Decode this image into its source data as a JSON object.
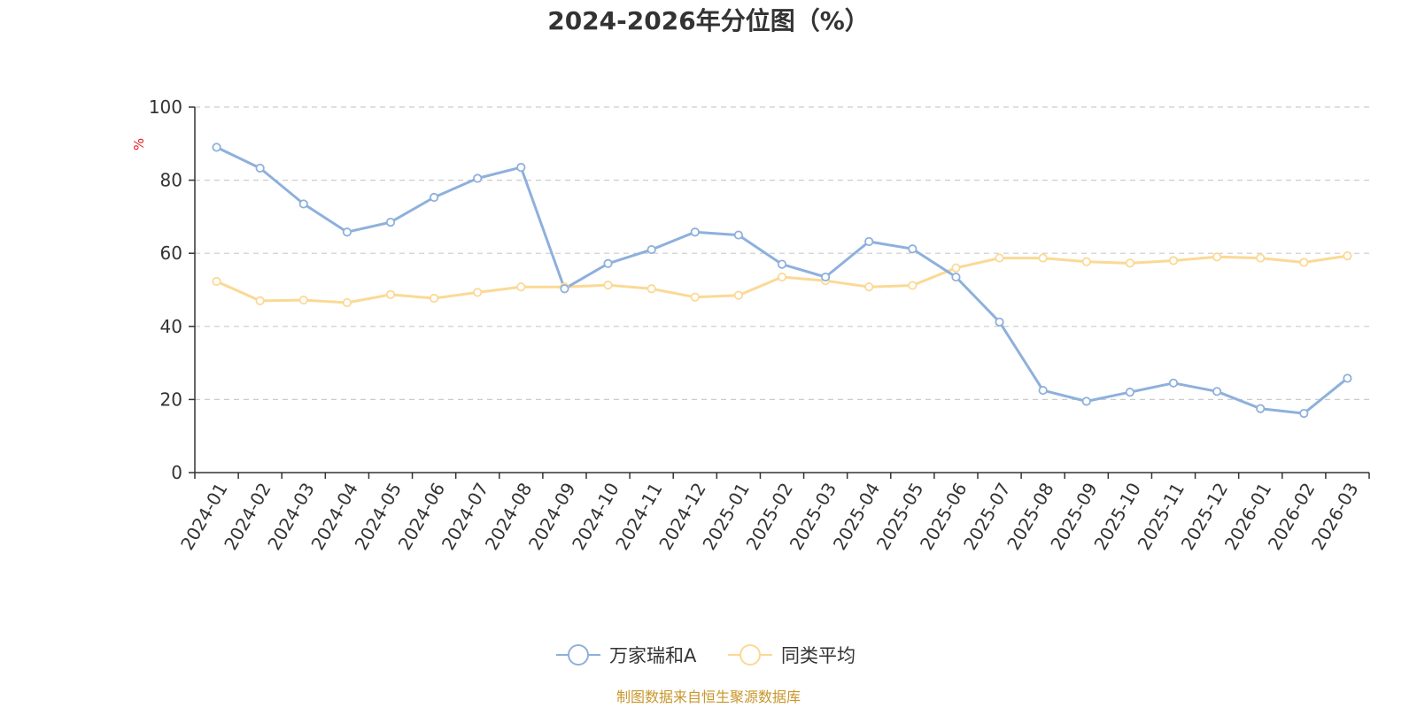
{
  "chart_data": {
    "type": "line",
    "title": "2024-2026年分位图（%）",
    "y_unit": "%",
    "ylim": [
      0,
      100
    ],
    "y_ticks": [
      "0",
      "20",
      "40",
      "60",
      "80",
      "100"
    ],
    "grid": "horizontal dashed",
    "legend_position": "bottom-center",
    "categories": [
      "2024-01",
      "2024-02",
      "2024-03",
      "2024-04",
      "2024-05",
      "2024-06",
      "2024-07",
      "2024-08",
      "2024-09",
      "2024-10",
      "2024-11",
      "2024-12",
      "2025-01",
      "2025-02",
      "2025-03",
      "2025-04",
      "2025-05",
      "2025-06",
      "2025-07",
      "2025-08",
      "2025-09",
      "2025-10",
      "2025-11",
      "2025-12",
      "2026-01",
      "2026-02",
      "2026-03"
    ],
    "series": [
      {
        "name": "万家瑞和A",
        "color": "#8eb0dc",
        "values": [
          89.0,
          83.3,
          73.5,
          65.8,
          68.5,
          75.3,
          80.5,
          83.5,
          50.3,
          57.2,
          61.0,
          65.8,
          65.0,
          57.0,
          53.5,
          63.2,
          61.2,
          53.5,
          41.2,
          22.5,
          19.5,
          22.0,
          24.5,
          22.2,
          17.5,
          16.2,
          25.8
        ]
      },
      {
        "name": "同类平均",
        "color": "#fbd995",
        "values": [
          52.3,
          47.0,
          47.2,
          46.5,
          48.7,
          47.7,
          49.3,
          50.8,
          50.8,
          51.3,
          50.3,
          48.0,
          48.5,
          53.5,
          52.5,
          50.8,
          51.2,
          56.0,
          58.7,
          58.7,
          57.7,
          57.3,
          58.0,
          59.0,
          58.7,
          57.5,
          59.3
        ]
      }
    ]
  },
  "source": "制图数据来自恒生聚源数据库"
}
